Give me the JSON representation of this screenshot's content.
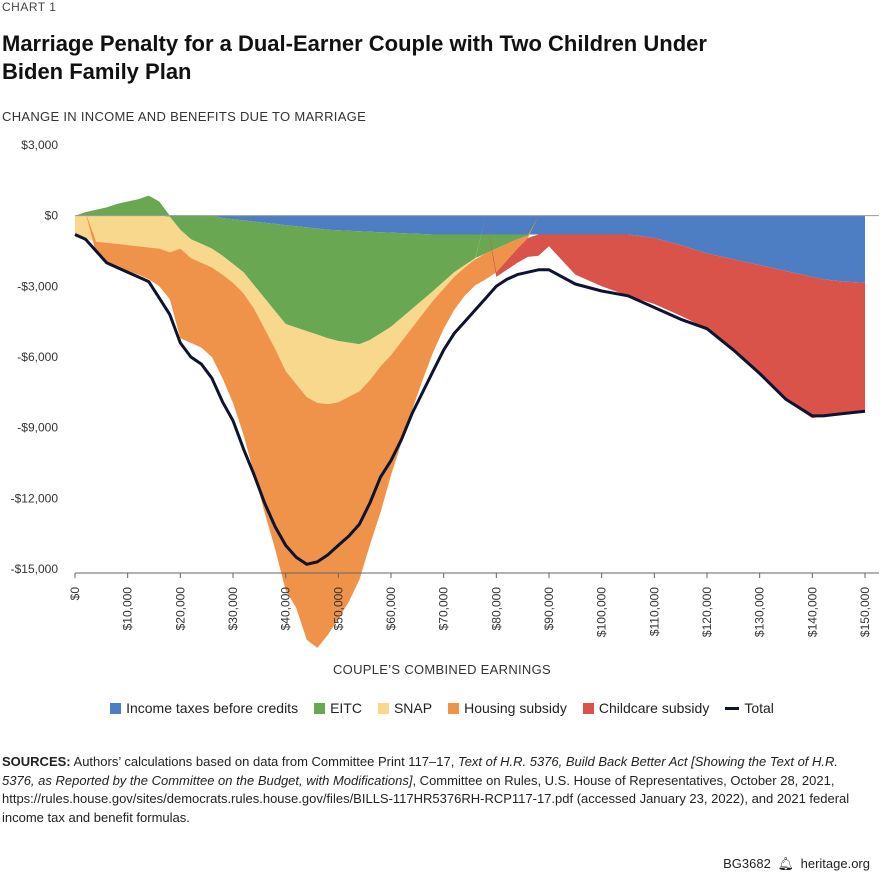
{
  "header": {
    "kicker": "CHART 1",
    "title": "Marriage Penalty for a Dual-Earner Couple with Two Children Under Biden Family Plan"
  },
  "sources": {
    "label": "SOURCES:",
    "text_1": " Authors’ calculations based on data from Committee Print 117–17, ",
    "italic": "Text of H.R. 5376, Build Back Better Act [Showing the Text of H.R. 5376, as Reported by the Committee on the Budget, with Modifications]",
    "text_2": ", Committee on Rules, U.S. House of Representatives, October 28, 2021, https://rules.house.gov/sites/democrats.rules.house.gov/files/BILLS-117HR5376RH-RCP117-17.pdf (accessed January 23, 2022), and 2021 federal income tax and benefit formulas."
  },
  "footer": {
    "code": "BG3682",
    "site": "heritage.org"
  },
  "chart_data": {
    "type": "area",
    "title": "",
    "ylabel": "CHANGE IN INCOME AND BENEFITS DUE TO MARRIAGE",
    "xlabel": "COUPLE’S COMBINED EARNINGS",
    "ylim": [
      -15000,
      3000
    ],
    "xlim": [
      0,
      150000
    ],
    "yticks": [
      3000,
      0,
      -3000,
      -6000,
      -9000,
      -12000,
      -15000
    ],
    "ytick_labels": [
      "$3,000",
      "$0",
      "-$3,000",
      "-$6,000",
      "-$9,000",
      "-$12,000",
      "-$15,000"
    ],
    "xticks": [
      0,
      10000,
      20000,
      30000,
      40000,
      50000,
      60000,
      70000,
      80000,
      90000,
      100000,
      110000,
      120000,
      130000,
      140000,
      150000
    ],
    "xtick_labels": [
      "$0",
      "$10,000",
      "$20,000",
      "$30,000",
      "$40,000",
      "$50,000",
      "$60,000",
      "$70,000",
      "$80,000",
      "$90,000",
      "$100,000",
      "$110,000",
      "$120,000",
      "$130,000",
      "$140,000",
      "$150,000"
    ],
    "grid": false,
    "legend_position": "bottom",
    "x": [
      0,
      2000,
      4000,
      6000,
      8000,
      10000,
      12000,
      14000,
      16000,
      18000,
      20000,
      22000,
      24000,
      26000,
      28000,
      30000,
      32000,
      34000,
      36000,
      38000,
      40000,
      42000,
      44000,
      46000,
      48000,
      50000,
      52000,
      54000,
      56000,
      58000,
      60000,
      62000,
      64000,
      66000,
      68000,
      70000,
      72000,
      74000,
      76000,
      78000,
      80000,
      82000,
      84000,
      86000,
      88000,
      90000,
      95000,
      100000,
      105000,
      110000,
      115000,
      120000,
      125000,
      130000,
      135000,
      140000,
      142000,
      146000,
      150000
    ],
    "series": [
      {
        "name": "Income taxes before credits",
        "color": "#4d7ec3",
        "values": [
          0,
          0,
          0,
          0,
          0,
          0,
          0,
          0,
          0,
          0,
          0,
          0,
          0,
          0,
          -100,
          -150,
          -200,
          -250,
          -300,
          -350,
          -400,
          -450,
          -500,
          -550,
          -600,
          -620,
          -640,
          -660,
          -680,
          -700,
          -720,
          -740,
          -760,
          -780,
          -800,
          -800,
          -800,
          -800,
          -800,
          -800,
          -800,
          -800,
          -800,
          -800,
          -800,
          -800,
          -800,
          -800,
          -800,
          -950,
          -1250,
          -1600,
          -1850,
          -2100,
          -2350,
          -2600,
          -2700,
          -2800,
          -2850
        ]
      },
      {
        "name": "EITC",
        "color": "#6aa753",
        "values": [
          0,
          150,
          250,
          350,
          500,
          600,
          700,
          850,
          600,
          -50,
          -600,
          -1000,
          -1200,
          -1400,
          -1600,
          -1900,
          -2200,
          -2700,
          -3200,
          -3700,
          -4200,
          -4300,
          -4400,
          -4500,
          -4600,
          -4700,
          -4750,
          -4800,
          -4600,
          -4300,
          -4000,
          -3600,
          -3200,
          -2800,
          -2400,
          -2000,
          -1600,
          -1300,
          -1000,
          -800,
          -600,
          -400,
          -200,
          -50,
          0,
          0,
          0,
          0,
          0,
          0,
          0,
          0,
          0,
          0,
          0,
          0,
          0,
          0,
          0
        ]
      },
      {
        "name": "SNAP",
        "color": "#f7d88c",
        "values": [
          -900,
          -1000,
          -1100,
          -1150,
          -1200,
          -1250,
          -1300,
          -1350,
          -1400,
          -1500,
          -800,
          -800,
          -800,
          -800,
          -800,
          -800,
          -900,
          -1000,
          -1300,
          -1600,
          -2000,
          -2400,
          -2800,
          -2900,
          -2800,
          -2600,
          -2300,
          -2000,
          -1700,
          -1400,
          -1200,
          -1000,
          -800,
          -600,
          -400,
          -300,
          -200,
          -100,
          -50,
          0,
          0,
          0,
          0,
          0,
          0,
          0,
          0,
          0,
          0,
          0,
          0,
          0,
          0,
          0,
          0,
          0,
          0,
          0,
          0
        ]
      },
      {
        "name": "Housing subsidy",
        "color": "#ef934a",
        "values": [
          0,
          0,
          -500,
          -800,
          -1000,
          -1100,
          -1200,
          -1350,
          -1600,
          -2000,
          -3800,
          -3600,
          -3600,
          -3800,
          -4400,
          -5100,
          -6000,
          -7000,
          -7800,
          -8500,
          -9300,
          -9500,
          -10300,
          -10400,
          -9800,
          -9200,
          -8700,
          -8000,
          -7000,
          -6200,
          -5100,
          -4300,
          -3500,
          -2800,
          -2200,
          -1700,
          -1400,
          -1200,
          -1100,
          -1100,
          -1000,
          -700,
          -400,
          -100,
          0,
          0,
          0,
          0,
          0,
          0,
          0,
          0,
          0,
          0,
          0,
          0,
          0,
          0,
          0
        ]
      },
      {
        "name": "Childcare subsidy",
        "color": "#d9534a",
        "values": [
          0,
          0,
          0,
          0,
          0,
          0,
          0,
          0,
          0,
          0,
          0,
          0,
          0,
          0,
          0,
          0,
          0,
          0,
          0,
          0,
          0,
          0,
          0,
          0,
          0,
          0,
          0,
          0,
          0,
          0,
          0,
          0,
          0,
          0,
          0,
          0,
          0,
          0,
          0,
          0,
          -200,
          -400,
          -600,
          -800,
          -900,
          -500,
          -1700,
          -2200,
          -2600,
          -2800,
          -3000,
          -3200,
          -3900,
          -4600,
          -5500,
          -6000,
          -5800,
          -5600,
          -5500
        ]
      },
      {
        "name": "Total",
        "color": "#0d1330",
        "values": [
          -800,
          -1000,
          -1500,
          -2000,
          -2200,
          -2400,
          -2600,
          -2800,
          -3500,
          -4200,
          -5400,
          -6000,
          -6300,
          -6900,
          -7900,
          -8700,
          -9900,
          -11000,
          -12200,
          -13200,
          -14000,
          -14500,
          -14800,
          -14700,
          -14400,
          -14000,
          -13600,
          -13100,
          -12200,
          -11100,
          -10400,
          -9500,
          -8400,
          -7500,
          -6600,
          -5700,
          -5000,
          -4500,
          -4000,
          -3500,
          -3000,
          -2700,
          -2500,
          -2400,
          -2300,
          -2300,
          -2900,
          -3200,
          -3400,
          -3900,
          -4400,
          -4800,
          -5700,
          -6700,
          -7800,
          -8500,
          -8500,
          -8400,
          -8300
        ]
      }
    ]
  }
}
